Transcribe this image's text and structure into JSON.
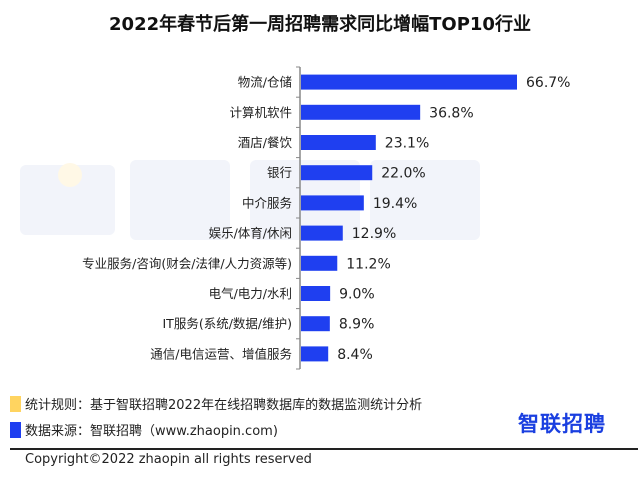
{
  "chart_data": {
    "type": "bar",
    "orientation": "horizontal",
    "title": "2022年春节后第一周招聘需求同比增幅TOP10行业",
    "categories": [
      "物流/仓储",
      "计算机软件",
      "酒店/餐饮",
      "银行",
      "中介服务",
      "娱乐/体育/休闲",
      "专业服务/咨询(财会/法律/人力资源等)",
      "电气/电力/水利",
      "IT服务(系统/数据/维护)",
      "通信/电信运营、增值服务"
    ],
    "values": [
      66.7,
      36.8,
      23.1,
      22.0,
      19.4,
      12.9,
      11.2,
      9.0,
      8.9,
      8.4
    ],
    "value_labels": [
      "66.7%",
      "36.8%",
      "23.1%",
      "22.0%",
      "19.4%",
      "12.9%",
      "11.2%",
      "9.0%",
      "8.9%",
      "8.4%"
    ],
    "xlabel": "",
    "ylabel": "",
    "xlim": [
      0,
      66.7
    ],
    "grid": false,
    "bar_color": "#1f3ff0"
  },
  "watermark": "智联招聘",
  "footer": {
    "rule_note": "统计规则：基于智联招聘2022年在线招聘数据库的数据监测统计分析",
    "source_note": "数据来源：智联招聘（www.zhaopin.com)",
    "rule_color": "#ffd460",
    "source_color": "#1f3ff0",
    "logo": "智联招聘",
    "copyright": "Copyright©2022 zhaopin all rights reserved"
  }
}
